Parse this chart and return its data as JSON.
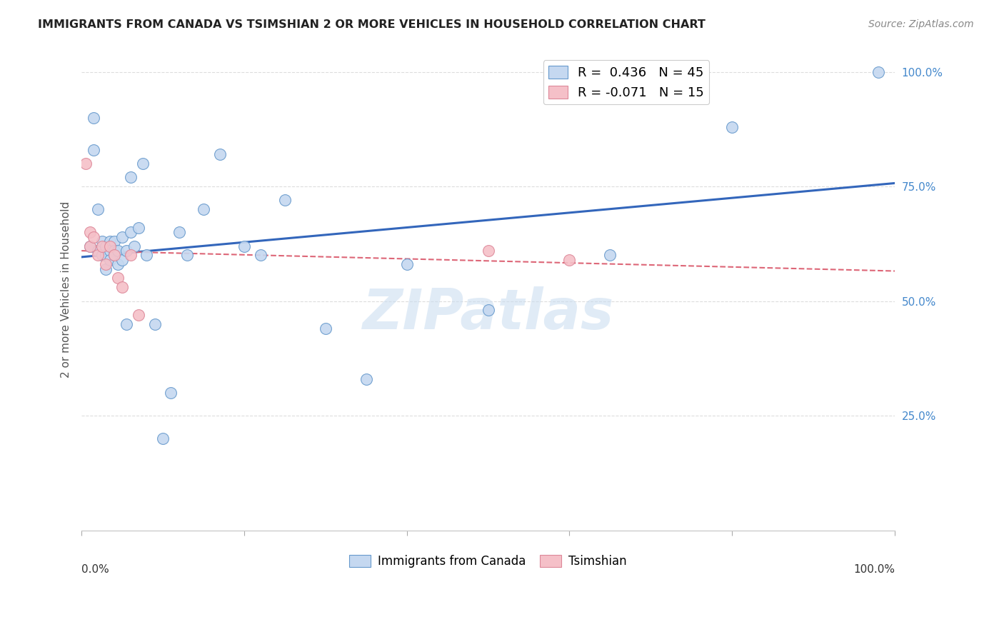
{
  "title": "IMMIGRANTS FROM CANADA VS TSIMSHIAN 2 OR MORE VEHICLES IN HOUSEHOLD CORRELATION CHART",
  "source": "Source: ZipAtlas.com",
  "ylabel": "2 or more Vehicles in Household",
  "legend_entry1": "R =  0.436   N = 45",
  "legend_entry2": "R = -0.071   N = 15",
  "legend_label1": "Immigrants from Canada",
  "legend_label2": "Tsimshian",
  "color_blue_fill": "#c5d8f0",
  "color_blue_edge": "#6699cc",
  "color_blue_line": "#3366bb",
  "color_pink_fill": "#f5c0c8",
  "color_pink_edge": "#dd8899",
  "color_pink_line": "#dd6677",
  "watermark": "ZIPatlas",
  "blue_x": [
    1.0,
    1.5,
    1.5,
    2.0,
    2.0,
    2.5,
    2.5,
    3.0,
    3.0,
    3.0,
    3.5,
    3.5,
    3.5,
    4.0,
    4.0,
    4.0,
    4.5,
    4.5,
    5.0,
    5.0,
    5.5,
    5.5,
    6.0,
    6.0,
    6.5,
    7.0,
    7.5,
    8.0,
    9.0,
    10.0,
    11.0,
    12.0,
    13.0,
    15.0,
    17.0,
    20.0,
    22.0,
    25.0,
    30.0,
    35.0,
    40.0,
    50.0,
    65.0,
    80.0,
    98.0
  ],
  "blue_y": [
    62,
    90,
    83,
    70,
    61,
    63,
    60,
    62,
    60,
    57,
    63,
    61,
    59,
    63,
    61,
    60,
    61,
    58,
    64,
    59,
    61,
    45,
    77,
    65,
    62,
    66,
    80,
    60,
    45,
    20,
    30,
    65,
    60,
    70,
    82,
    62,
    60,
    72,
    44,
    33,
    58,
    48,
    60,
    88,
    100
  ],
  "pink_x": [
    0.5,
    1.0,
    1.0,
    1.5,
    2.0,
    2.5,
    3.0,
    3.5,
    4.0,
    4.5,
    5.0,
    6.0,
    7.0,
    50.0,
    60.0
  ],
  "pink_y": [
    80,
    65,
    62,
    64,
    60,
    62,
    58,
    62,
    60,
    55,
    53,
    60,
    47,
    61,
    59
  ]
}
